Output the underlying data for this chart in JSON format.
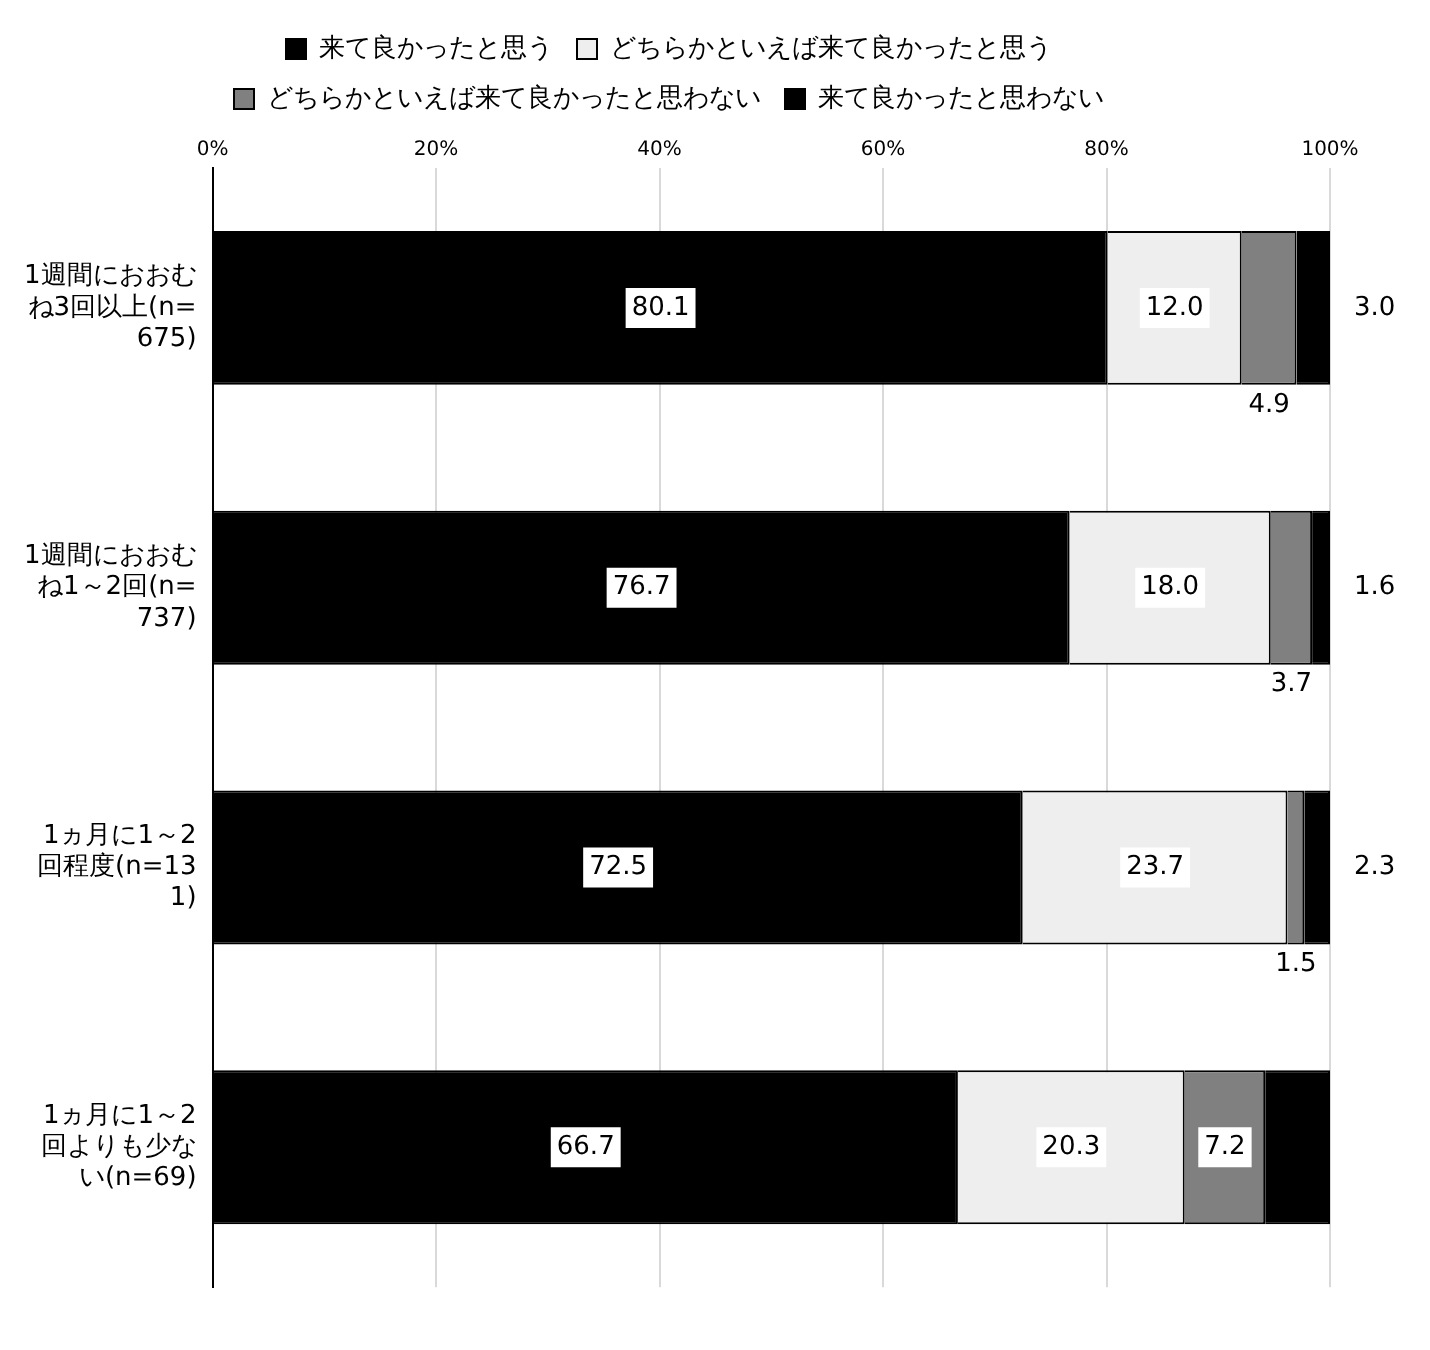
{
  "chart_data": {
    "type": "bar",
    "orientation": "horizontal",
    "stacked": true,
    "categories": [
      "1週間におおむね3回以上(n=675)",
      "1週間におおむね1～2回(n=737)",
      "1ヵ月に1～2回程度(n=131)",
      "1ヵ月に1～2回よりも少ない(n=69)"
    ],
    "series": [
      {
        "name": "来て良かったと思う",
        "color": "#000000",
        "values": [
          80.1,
          76.7,
          72.5,
          66.7
        ],
        "value_labels": [
          "80.1",
          "76.7",
          "72.5",
          "66.7"
        ]
      },
      {
        "name": "どちらかといえば来て良かったと思う",
        "color": "#eeeeee",
        "values": [
          12.0,
          18.0,
          23.7,
          20.3
        ],
        "value_labels": [
          "12.0",
          "18.0",
          "23.7",
          "20.3"
        ]
      },
      {
        "name": "どちらかといえば来て良かったと思わない",
        "color": "#808080",
        "values": [
          4.9,
          3.7,
          1.5,
          7.2
        ],
        "value_labels": [
          "4.9",
          "3.7",
          "1.5",
          "7.2"
        ]
      },
      {
        "name": "来て良かったと思わない",
        "color": "#000000",
        "values": [
          3.0,
          1.6,
          2.3,
          5.8
        ],
        "value_labels": [
          "3.0",
          "1.6",
          "2.3",
          null
        ]
      }
    ],
    "xlim": [
      0,
      100
    ],
    "xticks": [
      {
        "value": 0,
        "label": "0%"
      },
      {
        "value": 20,
        "label": "20%"
      },
      {
        "value": 40,
        "label": "40%"
      },
      {
        "value": 60,
        "label": "60%"
      },
      {
        "value": 80,
        "label": "80%"
      },
      {
        "value": 100,
        "label": "100%"
      }
    ],
    "grid": "x",
    "legend": "top"
  }
}
